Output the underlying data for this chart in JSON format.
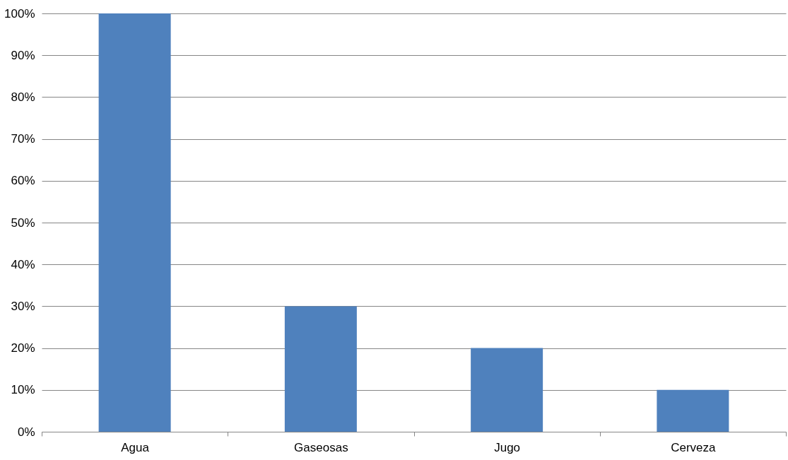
{
  "chart_data": {
    "type": "bar",
    "categories": [
      "Agua",
      "Gaseosas",
      "Jugo",
      "Cerveza"
    ],
    "values": [
      100,
      30,
      20,
      10
    ],
    "color": "#4f81bd",
    "ylim": [
      0,
      100
    ],
    "yticks": [
      {
        "value": 0,
        "label": "0%"
      },
      {
        "value": 10,
        "label": "10%"
      },
      {
        "value": 20,
        "label": "20%"
      },
      {
        "value": 30,
        "label": "30%"
      },
      {
        "value": 40,
        "label": "40%"
      },
      {
        "value": 50,
        "label": "50%"
      },
      {
        "value": 60,
        "label": "60%"
      },
      {
        "value": 70,
        "label": "70%"
      },
      {
        "value": 80,
        "label": "80%"
      },
      {
        "value": 90,
        "label": "90%"
      },
      {
        "value": 100,
        "label": "100%"
      }
    ],
    "grid": "y"
  }
}
